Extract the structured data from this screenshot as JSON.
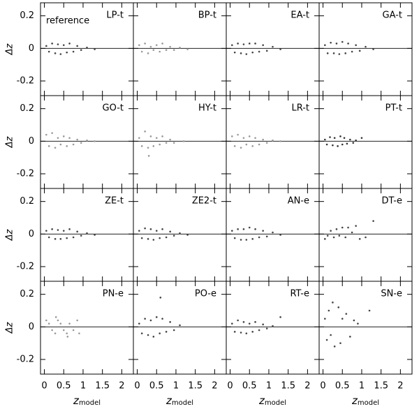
{
  "chart_data": [
    {
      "type": "scatter",
      "title": "LP-t",
      "annotation": "reference",
      "ylabel": "Δz",
      "color": "#444",
      "xlim": [
        -0.1,
        2.3
      ],
      "ylim": [
        -0.29,
        0.28
      ],
      "xticks": [
        0,
        0.5,
        1,
        1.5,
        2
      ],
      "yticks": [
        -0.2,
        0,
        0.2
      ],
      "hline": 0,
      "x": [
        0.05,
        0.12,
        0.2,
        0.28,
        0.35,
        0.42,
        0.5,
        0.58,
        0.65,
        0.75,
        0.85,
        0.95,
        1.1,
        1.3
      ],
      "y": [
        0.015,
        -0.02,
        0.03,
        -0.03,
        0.025,
        -0.035,
        0.02,
        -0.025,
        0.03,
        -0.02,
        0.015,
        -0.01,
        0.005,
        -0.005
      ]
    },
    {
      "type": "scatter",
      "title": "BP-t",
      "color": "#999",
      "xlim": [
        -0.1,
        2.3
      ],
      "ylim": [
        -0.29,
        0.28
      ],
      "xticks": [
        0,
        0.5,
        1,
        1.5,
        2
      ],
      "yticks": [
        -0.2,
        0,
        0.2
      ],
      "hline": 0,
      "x": [
        0.05,
        0.12,
        0.2,
        0.28,
        0.35,
        0.42,
        0.5,
        0.58,
        0.65,
        0.75,
        0.85,
        0.95,
        1.1,
        1.3
      ],
      "y": [
        0.02,
        -0.02,
        0.03,
        -0.03,
        0.01,
        -0.01,
        0.02,
        -0.02,
        0.03,
        -0.01,
        0.01,
        -0.01,
        0.005,
        -0.005
      ]
    },
    {
      "type": "scatter",
      "title": "EA-t",
      "color": "#444",
      "xlim": [
        -0.1,
        2.3
      ],
      "ylim": [
        -0.29,
        0.28
      ],
      "xticks": [
        0,
        0.5,
        1,
        1.5,
        2
      ],
      "yticks": [
        -0.2,
        0,
        0.2
      ],
      "hline": 0,
      "x": [
        0.05,
        0.12,
        0.2,
        0.28,
        0.35,
        0.42,
        0.5,
        0.58,
        0.65,
        0.75,
        0.85,
        0.95,
        1.1,
        1.3
      ],
      "y": [
        0.02,
        -0.025,
        0.03,
        -0.03,
        0.025,
        -0.035,
        0.03,
        -0.025,
        0.03,
        -0.02,
        0.02,
        -0.015,
        0.01,
        -0.005
      ]
    },
    {
      "type": "scatter",
      "title": "GA-t",
      "color": "#444",
      "xlim": [
        -0.1,
        2.3
      ],
      "ylim": [
        -0.29,
        0.28
      ],
      "xticks": [
        0,
        0.5,
        1,
        1.5,
        2
      ],
      "yticks": [
        -0.2,
        0,
        0.2
      ],
      "hline": 0,
      "x": [
        0.05,
        0.12,
        0.2,
        0.28,
        0.35,
        0.42,
        0.5,
        0.58,
        0.65,
        0.75,
        0.85,
        0.95,
        1.1,
        1.3
      ],
      "y": [
        0.02,
        -0.03,
        0.035,
        -0.03,
        0.03,
        -0.035,
        0.04,
        -0.03,
        0.03,
        -0.02,
        0.02,
        -0.015,
        0.01,
        -0.005
      ]
    },
    {
      "type": "scatter",
      "title": "GO-t",
      "ylabel": "Δz",
      "color": "#999",
      "xlim": [
        -0.1,
        2.3
      ],
      "ylim": [
        -0.29,
        0.28
      ],
      "xticks": [
        0,
        0.5,
        1,
        1.5,
        2
      ],
      "yticks": [
        -0.2,
        0,
        0.2
      ],
      "hline": 0,
      "x": [
        0.05,
        0.12,
        0.2,
        0.28,
        0.35,
        0.42,
        0.5,
        0.58,
        0.65,
        0.75,
        0.85,
        0.95,
        1.1,
        1.3
      ],
      "y": [
        0.04,
        -0.03,
        0.05,
        -0.04,
        0.02,
        -0.02,
        0.03,
        -0.03,
        0.02,
        -0.02,
        0.01,
        -0.01,
        0.005,
        0
      ]
    },
    {
      "type": "scatter",
      "title": "HY-t",
      "color": "#999",
      "xlim": [
        -0.1,
        2.3
      ],
      "ylim": [
        -0.29,
        0.28
      ],
      "xticks": [
        0,
        0.5,
        1,
        1.5,
        2
      ],
      "yticks": [
        -0.2,
        0,
        0.2
      ],
      "hline": 0,
      "x": [
        0.05,
        0.12,
        0.2,
        0.28,
        0.3,
        0.35,
        0.42,
        0.5,
        0.58,
        0.65,
        0.75,
        0.85,
        0.95,
        1.2
      ],
      "y": [
        0.02,
        -0.03,
        0.06,
        -0.04,
        -0.09,
        0.03,
        -0.03,
        0.02,
        -0.02,
        0.03,
        -0.01,
        0.01,
        -0.01,
        0
      ]
    },
    {
      "type": "scatter",
      "title": "LR-t",
      "color": "#999",
      "xlim": [
        -0.1,
        2.3
      ],
      "ylim": [
        -0.29,
        0.28
      ],
      "xticks": [
        0,
        0.5,
        1,
        1.5,
        2
      ],
      "yticks": [
        -0.2,
        0,
        0.2
      ],
      "hline": 0,
      "x": [
        0.05,
        0.12,
        0.2,
        0.28,
        0.35,
        0.42,
        0.5,
        0.58,
        0.65,
        0.75,
        0.85,
        0.95,
        1.1,
        1.3
      ],
      "y": [
        0.03,
        -0.03,
        0.04,
        -0.04,
        0.02,
        -0.02,
        0.03,
        -0.03,
        0.02,
        -0.02,
        0.01,
        -0.01,
        0.005,
        0
      ]
    },
    {
      "type": "scatter",
      "title": "PT-t",
      "color": "#333",
      "xlim": [
        -0.1,
        2.3
      ],
      "ylim": [
        -0.29,
        0.28
      ],
      "xticks": [
        0,
        0.5,
        1,
        1.5,
        2
      ],
      "yticks": [
        -0.2,
        0,
        0.2
      ],
      "hline": 0,
      "x": [
        0.05,
        0.1,
        0.18,
        0.25,
        0.3,
        0.38,
        0.45,
        0.5,
        0.55,
        0.62,
        0.7,
        0.78,
        0.85,
        1.0
      ],
      "y": [
        0.01,
        -0.02,
        0.025,
        -0.025,
        0.02,
        -0.03,
        0.03,
        -0.02,
        0.02,
        -0.015,
        0.01,
        -0.01,
        0.005,
        0.02
      ]
    },
    {
      "type": "scatter",
      "title": "ZE-t",
      "ylabel": "Δz",
      "color": "#444",
      "xlim": [
        -0.1,
        2.3
      ],
      "ylim": [
        -0.29,
        0.28
      ],
      "xticks": [
        0,
        0.5,
        1,
        1.5,
        2
      ],
      "yticks": [
        -0.2,
        0,
        0.2
      ],
      "hline": 0,
      "x": [
        0.05,
        0.12,
        0.2,
        0.28,
        0.35,
        0.42,
        0.5,
        0.58,
        0.65,
        0.75,
        0.85,
        0.95,
        1.1,
        1.3
      ],
      "y": [
        0.02,
        -0.02,
        0.03,
        -0.03,
        0.025,
        -0.03,
        0.02,
        -0.025,
        0.03,
        -0.02,
        0.015,
        -0.01,
        0.005,
        -0.005
      ]
    },
    {
      "type": "scatter",
      "title": "ZE2-t",
      "color": "#444",
      "xlim": [
        -0.1,
        2.3
      ],
      "ylim": [
        -0.29,
        0.28
      ],
      "xticks": [
        0,
        0.5,
        1,
        1.5,
        2
      ],
      "yticks": [
        -0.2,
        0,
        0.2
      ],
      "hline": 0,
      "x": [
        0.05,
        0.12,
        0.2,
        0.28,
        0.35,
        0.42,
        0.5,
        0.58,
        0.65,
        0.75,
        0.85,
        0.95,
        1.1,
        1.3
      ],
      "y": [
        0.02,
        -0.025,
        0.035,
        -0.03,
        0.03,
        -0.035,
        0.02,
        -0.025,
        0.03,
        -0.02,
        0.015,
        -0.01,
        0.005,
        -0.005
      ]
    },
    {
      "type": "scatter",
      "title": "AN-e",
      "color": "#444",
      "xlim": [
        -0.1,
        2.3
      ],
      "ylim": [
        -0.29,
        0.28
      ],
      "xticks": [
        0,
        0.5,
        1,
        1.5,
        2
      ],
      "yticks": [
        -0.2,
        0,
        0.2
      ],
      "hline": 0,
      "x": [
        0.05,
        0.12,
        0.2,
        0.28,
        0.35,
        0.42,
        0.5,
        0.58,
        0.65,
        0.75,
        0.85,
        0.95,
        1.1,
        1.3
      ],
      "y": [
        0.02,
        -0.025,
        0.03,
        -0.035,
        0.03,
        -0.035,
        0.04,
        -0.03,
        0.03,
        -0.02,
        0.02,
        -0.015,
        0.01,
        -0.005
      ]
    },
    {
      "type": "scatter",
      "title": "DT-e",
      "color": "#444",
      "xlim": [
        -0.1,
        2.3
      ],
      "ylim": [
        -0.29,
        0.28
      ],
      "xticks": [
        0,
        0.5,
        1,
        1.5,
        2
      ],
      "yticks": [
        -0.2,
        0,
        0.2
      ],
      "hline": 0,
      "x": [
        0.05,
        0.12,
        0.2,
        0.28,
        0.35,
        0.42,
        0.5,
        0.58,
        0.65,
        0.75,
        0.85,
        0.95,
        1.1,
        1.3
      ],
      "y": [
        -0.03,
        -0.01,
        0.02,
        -0.02,
        0.03,
        -0.01,
        0.04,
        -0.02,
        0.04,
        0.01,
        0.05,
        -0.03,
        -0.02,
        0.08
      ]
    },
    {
      "type": "scatter",
      "title": "PN-e",
      "ylabel": "Δz",
      "xlabel": "z",
      "xlabel_sub": "model",
      "color": "#999",
      "xlim": [
        -0.1,
        2.3
      ],
      "ylim": [
        -0.29,
        0.28
      ],
      "xticks": [
        0,
        0.5,
        1,
        1.5,
        2
      ],
      "yticks": [
        -0.2,
        0,
        0.2
      ],
      "hline": 0,
      "x": [
        0.05,
        0.12,
        0.2,
        0.28,
        0.35,
        0.42,
        0.5,
        0.58,
        0.65,
        0.75,
        0.85,
        0.9,
        0.3,
        0.6
      ],
      "y": [
        0.04,
        0.02,
        -0.02,
        -0.04,
        0.04,
        0.02,
        -0.02,
        -0.04,
        0.02,
        -0.02,
        0.04,
        -0.04,
        0.06,
        -0.06
      ]
    },
    {
      "type": "scatter",
      "title": "PO-e",
      "xlabel": "z",
      "xlabel_sub": "model",
      "color": "#444",
      "xlim": [
        -0.1,
        2.3
      ],
      "ylim": [
        -0.29,
        0.28
      ],
      "xticks": [
        0,
        0.5,
        1,
        1.5,
        2
      ],
      "yticks": [
        -0.2,
        0,
        0.2
      ],
      "hline": 0,
      "x": [
        0.05,
        0.12,
        0.2,
        0.28,
        0.35,
        0.42,
        0.5,
        0.58,
        0.6,
        0.65,
        0.75,
        0.85,
        0.95,
        1.1
      ],
      "y": [
        0.02,
        -0.04,
        0.05,
        -0.05,
        0.04,
        -0.06,
        0.06,
        -0.04,
        0.18,
        0.05,
        -0.03,
        0.03,
        -0.02,
        0.01
      ]
    },
    {
      "type": "scatter",
      "title": "RT-e",
      "xlabel": "z",
      "xlabel_sub": "model",
      "color": "#444",
      "xlim": [
        -0.1,
        2.3
      ],
      "ylim": [
        -0.29,
        0.28
      ],
      "xticks": [
        0,
        0.5,
        1,
        1.5,
        2
      ],
      "yticks": [
        -0.2,
        0,
        0.2
      ],
      "hline": 0,
      "x": [
        0.05,
        0.12,
        0.2,
        0.28,
        0.35,
        0.42,
        0.5,
        0.58,
        0.65,
        0.75,
        0.85,
        0.95,
        1.1,
        1.3
      ],
      "y": [
        0.02,
        -0.03,
        0.04,
        -0.035,
        0.03,
        -0.04,
        0.02,
        -0.03,
        0.03,
        -0.02,
        0.015,
        -0.01,
        0.005,
        0.06
      ]
    },
    {
      "type": "scatter",
      "title": "SN-e",
      "xlabel": "z",
      "xlabel_sub": "model",
      "color": "#444",
      "xlim": [
        -0.1,
        2.3
      ],
      "ylim": [
        -0.29,
        0.28
      ],
      "xticks": [
        0,
        0.5,
        1,
        1.5,
        2
      ],
      "yticks": [
        -0.2,
        0,
        0.2
      ],
      "hline": 0,
      "x": [
        0.05,
        0.1,
        0.15,
        0.2,
        0.25,
        0.3,
        0.4,
        0.45,
        0.5,
        0.6,
        0.7,
        0.8,
        0.9,
        1.2
      ],
      "y": [
        0.05,
        -0.08,
        0.1,
        -0.05,
        0.15,
        -0.12,
        0.12,
        -0.1,
        0.05,
        0.08,
        -0.06,
        0.04,
        0.02,
        0.1
      ]
    }
  ]
}
